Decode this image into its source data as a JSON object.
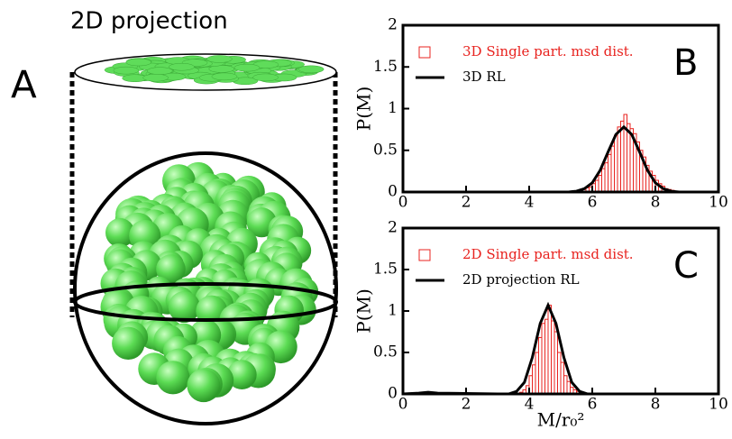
{
  "illustration": {
    "panel": "A",
    "title": "2D projection"
  },
  "chart_data": [
    {
      "type": "histogram",
      "panel": "B",
      "ylabel": "P(M)",
      "xlim": [
        0,
        10
      ],
      "xticks": [
        0,
        2,
        4,
        6,
        8,
        10
      ],
      "ylim": [
        0,
        2
      ],
      "yticks": [
        0,
        0.5,
        1,
        1.5,
        2
      ],
      "histogram": {
        "name": "3D Single part. msd dist.",
        "color": "#e8231f",
        "bins": [
          5.6,
          5.7,
          5.8,
          5.9,
          6.0,
          6.1,
          6.2,
          6.3,
          6.4,
          6.5,
          6.6,
          6.7,
          6.8,
          6.9,
          7.0,
          7.1,
          7.2,
          7.3,
          7.4,
          7.5,
          7.6,
          7.7,
          7.8,
          7.9,
          8.0,
          8.1,
          8.2,
          8.3,
          8.4,
          8.5,
          8.6,
          8.7,
          8.8
        ],
        "values": [
          0.02,
          0.03,
          0.05,
          0.06,
          0.1,
          0.14,
          0.2,
          0.28,
          0.35,
          0.45,
          0.55,
          0.68,
          0.78,
          0.85,
          0.93,
          0.82,
          0.76,
          0.7,
          0.6,
          0.5,
          0.42,
          0.32,
          0.25,
          0.2,
          0.14,
          0.1,
          0.07,
          0.04,
          0.03,
          0.02,
          0.01,
          0.01
        ]
      },
      "curve": {
        "name": "3D RL",
        "color": "#000000",
        "x": [
          0,
          4,
          5,
          5.25,
          5.5,
          5.75,
          6,
          6.25,
          6.5,
          6.75,
          7,
          7.25,
          7.5,
          7.75,
          8,
          8.25,
          8.5,
          8.75,
          9,
          10
        ],
        "values": [
          0,
          0,
          0,
          0,
          0.01,
          0.04,
          0.11,
          0.26,
          0.48,
          0.69,
          0.78,
          0.69,
          0.48,
          0.26,
          0.11,
          0.04,
          0.01,
          0,
          0,
          0
        ]
      }
    },
    {
      "type": "histogram",
      "panel": "C",
      "ylabel": "P(M)",
      "xlabel": "M/r₀²",
      "xlim": [
        0,
        10
      ],
      "xticks": [
        0,
        2,
        4,
        6,
        8,
        10
      ],
      "ylim": [
        0,
        2
      ],
      "yticks": [
        0,
        0.5,
        1,
        1.5,
        2
      ],
      "histogram": {
        "name": "2D Single part. msd dist.",
        "color": "#e8231f",
        "bins": [
          3.7,
          3.8,
          3.9,
          4.0,
          4.1,
          4.2,
          4.3,
          4.4,
          4.5,
          4.6,
          4.7,
          4.8,
          4.9,
          5.0,
          5.1,
          5.2,
          5.3,
          5.4,
          5.5,
          5.6,
          5.7
        ],
        "values": [
          0.02,
          0.05,
          0.1,
          0.22,
          0.35,
          0.5,
          0.68,
          0.85,
          0.9,
          1.07,
          0.88,
          0.75,
          0.5,
          0.38,
          0.22,
          0.15,
          0.08,
          0.05,
          0.03,
          0.02
        ]
      },
      "curve": {
        "name": "2D projection RL",
        "color": "#000000",
        "x": [
          0,
          0.5,
          0.8,
          1.1,
          3,
          3.35,
          3.6,
          3.85,
          4.1,
          4.35,
          4.6,
          4.85,
          5.1,
          5.35,
          5.6,
          5.85,
          7,
          10
        ],
        "values": [
          0,
          0.01,
          0.02,
          0.01,
          0,
          0,
          0.03,
          0.14,
          0.44,
          0.85,
          1.07,
          0.85,
          0.44,
          0.14,
          0.03,
          0,
          0,
          0
        ]
      }
    }
  ]
}
